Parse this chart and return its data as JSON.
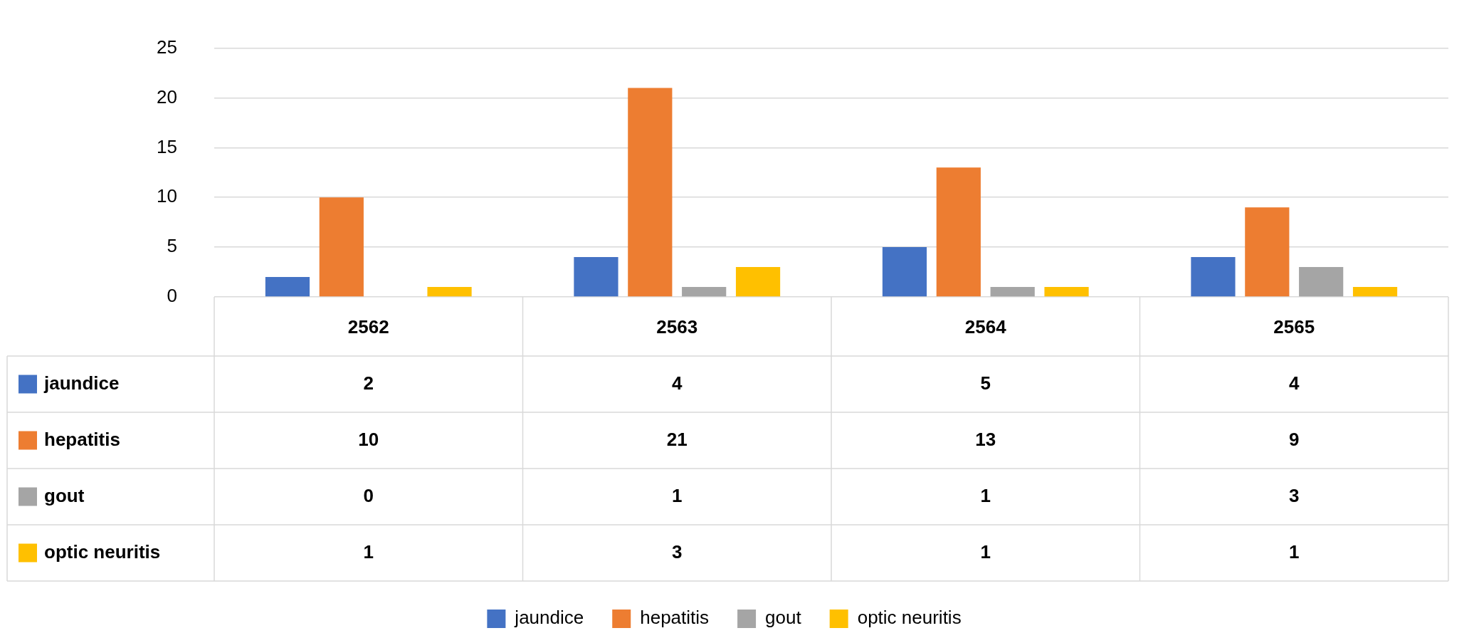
{
  "chart_data": {
    "type": "bar",
    "categories": [
      "2562",
      "2563",
      "2564",
      "2565"
    ],
    "series": [
      {
        "name": "jaundice",
        "color": "#4472c4",
        "values": [
          2,
          4,
          5,
          4
        ]
      },
      {
        "name": "hepatitis",
        "color": "#ed7d31",
        "values": [
          10,
          21,
          13,
          9
        ]
      },
      {
        "name": "gout",
        "color": "#a5a5a5",
        "values": [
          0,
          1,
          1,
          3
        ]
      },
      {
        "name": "optic neuritis",
        "color": "#ffc000",
        "values": [
          1,
          3,
          1,
          1
        ]
      }
    ],
    "ylim": [
      0,
      25
    ],
    "yticks": [
      0,
      5,
      10,
      15,
      20,
      25
    ],
    "grid": "y",
    "legend": "bottom",
    "data_labels": true
  }
}
